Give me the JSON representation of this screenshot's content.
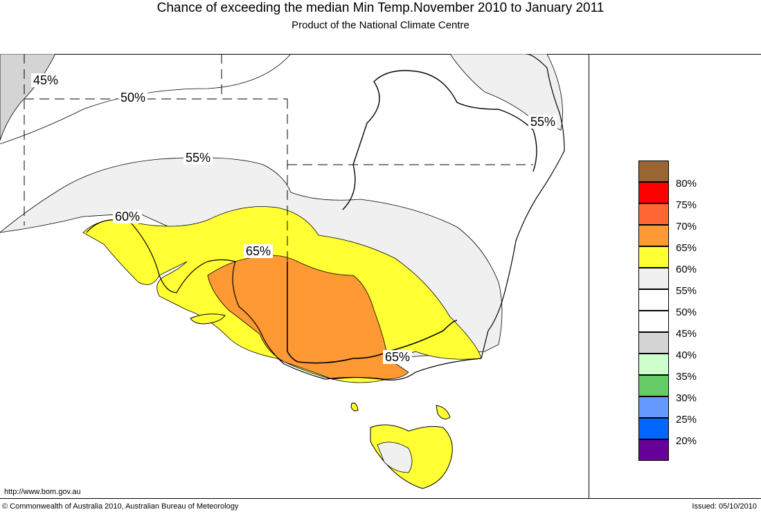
{
  "header": {
    "title": "Chance of exceeding the median Min Temp.November 2010 to January 2011",
    "subtitle": "Product of the National Climate Centre"
  },
  "map": {
    "contour_labels": [
      "45%",
      "50%",
      "55%",
      "60%",
      "65%",
      "65%",
      "55%"
    ],
    "colors": {
      "gray_45": "#d4d4d4",
      "light_55": "#f0f0f0",
      "yellow_60": "#ffff33",
      "orange_65": "#ff9933"
    }
  },
  "legend": {
    "items": [
      {
        "label": "80%",
        "color": "#996633"
      },
      {
        "label": "75%",
        "color": "#ff0000"
      },
      {
        "label": "70%",
        "color": "#ff6633"
      },
      {
        "label": "65%",
        "color": "#ff9933"
      },
      {
        "label": "60%",
        "color": "#ffff33"
      },
      {
        "label": "55%",
        "color": "#f0f0f0"
      },
      {
        "label": "50%",
        "color": "#ffffff"
      },
      {
        "label": "45%",
        "color": "#ffffff"
      },
      {
        "label": "40%",
        "color": "#d4d4d4"
      },
      {
        "label": "35%",
        "color": "#ccffcc"
      },
      {
        "label": "30%",
        "color": "#66cc66"
      },
      {
        "label": "25%",
        "color": "#6699ff"
      },
      {
        "label": "20%",
        "color": "#0066ff"
      },
      {
        "label": "",
        "color": "#660099"
      }
    ]
  },
  "footer": {
    "url": "http://www.bom.gov.au",
    "copyright": "© Commonwealth of Australia 2010, Australian Bureau of Meteorology",
    "issued": "Issued: 05/10/2010"
  }
}
